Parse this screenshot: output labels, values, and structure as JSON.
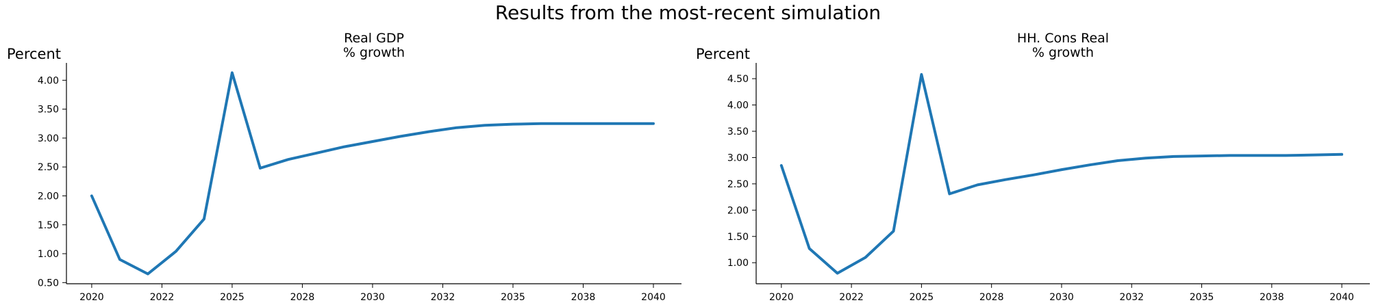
{
  "figure": {
    "suptitle": "Results from the most-recent simulation"
  },
  "chart_data": [
    {
      "type": "line",
      "title": "Real GDP\n % growth",
      "ylabel": "Percent",
      "xlabel": "",
      "x": [
        2020,
        2021,
        2022,
        2023,
        2024,
        2025,
        2026,
        2027,
        2028,
        2029,
        2030,
        2031,
        2032,
        2033,
        2034,
        2035,
        2036,
        2037,
        2038,
        2039,
        2040
      ],
      "xticks": [
        2020,
        2022.5,
        2025,
        2027.5,
        2030,
        2032.5,
        2035,
        2037.5,
        2040
      ],
      "xtick_labels": [
        "2020",
        "2022",
        "2025",
        "2028",
        "2030",
        "2032",
        "2035",
        "2038",
        "2040"
      ],
      "xlim": [
        2019.1,
        2041.0
      ],
      "ylim": [
        0.48,
        4.3
      ],
      "yticks": [
        0.5,
        1.0,
        1.5,
        2.0,
        2.5,
        3.0,
        3.5,
        4.0
      ],
      "ytick_labels": [
        "0.50",
        "1.00",
        "1.50",
        "2.00",
        "2.50",
        "3.00",
        "3.50",
        "4.00"
      ],
      "series": [
        {
          "values": [
            2.0,
            0.9,
            0.65,
            1.04,
            1.6,
            4.13,
            2.48,
            2.63,
            2.74,
            2.85,
            2.94,
            3.03,
            3.11,
            3.18,
            3.22,
            3.24,
            3.25,
            3.25,
            3.25,
            3.25,
            3.25
          ],
          "color": "#1f77b4"
        }
      ],
      "grid": false
    },
    {
      "type": "line",
      "title": "HH. Cons Real\n % growth",
      "ylabel": "Percent",
      "xlabel": "",
      "x": [
        2020,
        2021,
        2022,
        2023,
        2024,
        2025,
        2026,
        2027,
        2028,
        2029,
        2030,
        2031,
        2032,
        2033,
        2034,
        2035,
        2036,
        2037,
        2038,
        2039,
        2040
      ],
      "xticks": [
        2020,
        2022.5,
        2025,
        2027.5,
        2030,
        2032.5,
        2035,
        2037.5,
        2040
      ],
      "xtick_labels": [
        "2020",
        "2022",
        "2025",
        "2028",
        "2030",
        "2032",
        "2035",
        "2038",
        "2040"
      ],
      "xlim": [
        2019.1,
        2041.0
      ],
      "ylim": [
        0.6,
        4.8
      ],
      "yticks": [
        1.0,
        1.5,
        2.0,
        2.5,
        3.0,
        3.5,
        4.0,
        4.5
      ],
      "ytick_labels": [
        "1.00",
        "1.50",
        "2.00",
        "2.50",
        "3.00",
        "3.50",
        "4.00",
        "4.50"
      ],
      "series": [
        {
          "values": [
            2.85,
            1.27,
            0.8,
            1.1,
            1.6,
            4.58,
            2.31,
            2.48,
            2.58,
            2.67,
            2.77,
            2.86,
            2.94,
            2.99,
            3.02,
            3.03,
            3.04,
            3.04,
            3.04,
            3.05,
            3.06
          ],
          "color": "#1f77b4"
        }
      ],
      "grid": false
    }
  ]
}
